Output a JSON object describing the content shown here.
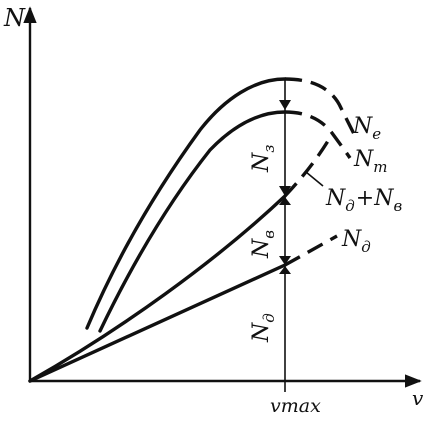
{
  "axes": {
    "y_label": "N",
    "x_label": "v",
    "x_tick": "vmax"
  },
  "curves": {
    "ne": {
      "base": "N",
      "sub": "e"
    },
    "nt": {
      "base": "N",
      "sub": "т"
    },
    "nd_nv": {
      "part1": "N",
      "sub1": "д",
      "plus": "+",
      "part2": "N",
      "sub2": "в"
    },
    "nd": {
      "base": "N",
      "sub": "д"
    }
  },
  "segments": {
    "nz": {
      "base": "N",
      "sub": "з"
    },
    "nv": {
      "base": "N",
      "sub": "в"
    },
    "nd": {
      "base": "N",
      "sub": "д"
    }
  }
}
